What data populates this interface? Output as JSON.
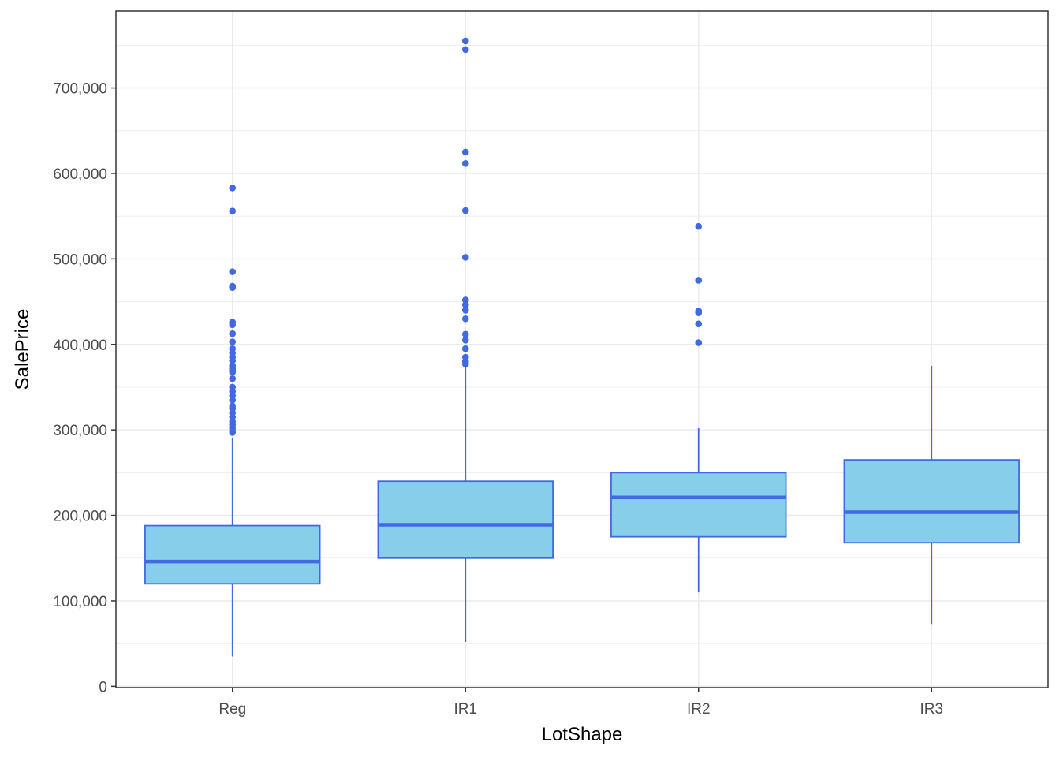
{
  "chart_data": {
    "type": "boxplot",
    "xlabel": "LotShape",
    "ylabel": "SalePrice",
    "categories": [
      "Reg",
      "IR1",
      "IR2",
      "IR3"
    ],
    "ylim": [
      -1500,
      790000
    ],
    "yticks": [
      0,
      100000,
      200000,
      300000,
      400000,
      500000,
      600000,
      700000
    ],
    "ytick_labels": [
      "0",
      "100,000",
      "200,000",
      "300,000",
      "400,000",
      "500,000",
      "600,000",
      "700,000"
    ],
    "grid": true,
    "legend": "none",
    "colors": {
      "box_fill": "#87ceeb",
      "box_line": "#4169e1",
      "outlier": "#4169e1",
      "grid": "#ebebeb",
      "panel_border": "#333333"
    },
    "boxes": [
      {
        "category": "Reg",
        "whisker_low": 34900,
        "q1": 120000,
        "median": 146000,
        "q3": 188000,
        "whisker_high": 290000,
        "outliers": [
          583000,
          556000,
          485000,
          468000,
          466500,
          426000,
          423000,
          412500,
          403000,
          395000,
          390000,
          385000,
          381000,
          375000,
          372000,
          370000,
          367500,
          360000,
          350000,
          345000,
          340000,
          335000,
          328000,
          325000,
          320000,
          315000,
          310000,
          306000,
          302000,
          299000,
          297000
        ]
      },
      {
        "category": "IR1",
        "whisker_low": 52000,
        "q1": 150000,
        "median": 189000,
        "q3": 240000,
        "whisker_high": 375000,
        "outliers": [
          755000,
          745000,
          625000,
          611657,
          556581,
          501837,
          451950,
          446261,
          440000,
          430000,
          412000,
          405000,
          395000,
          385000,
          380000,
          377000
        ]
      },
      {
        "category": "IR2",
        "whisker_low": 110000,
        "q1": 175000,
        "median": 221000,
        "q3": 250000,
        "whisker_high": 302000,
        "outliers": [
          538000,
          475000,
          439000,
          437000,
          424000,
          402000
        ]
      },
      {
        "category": "IR3",
        "whisker_low": 73000,
        "q1": 168000,
        "median": 203700,
        "q3": 265000,
        "whisker_high": 375000,
        "outliers": []
      }
    ]
  }
}
